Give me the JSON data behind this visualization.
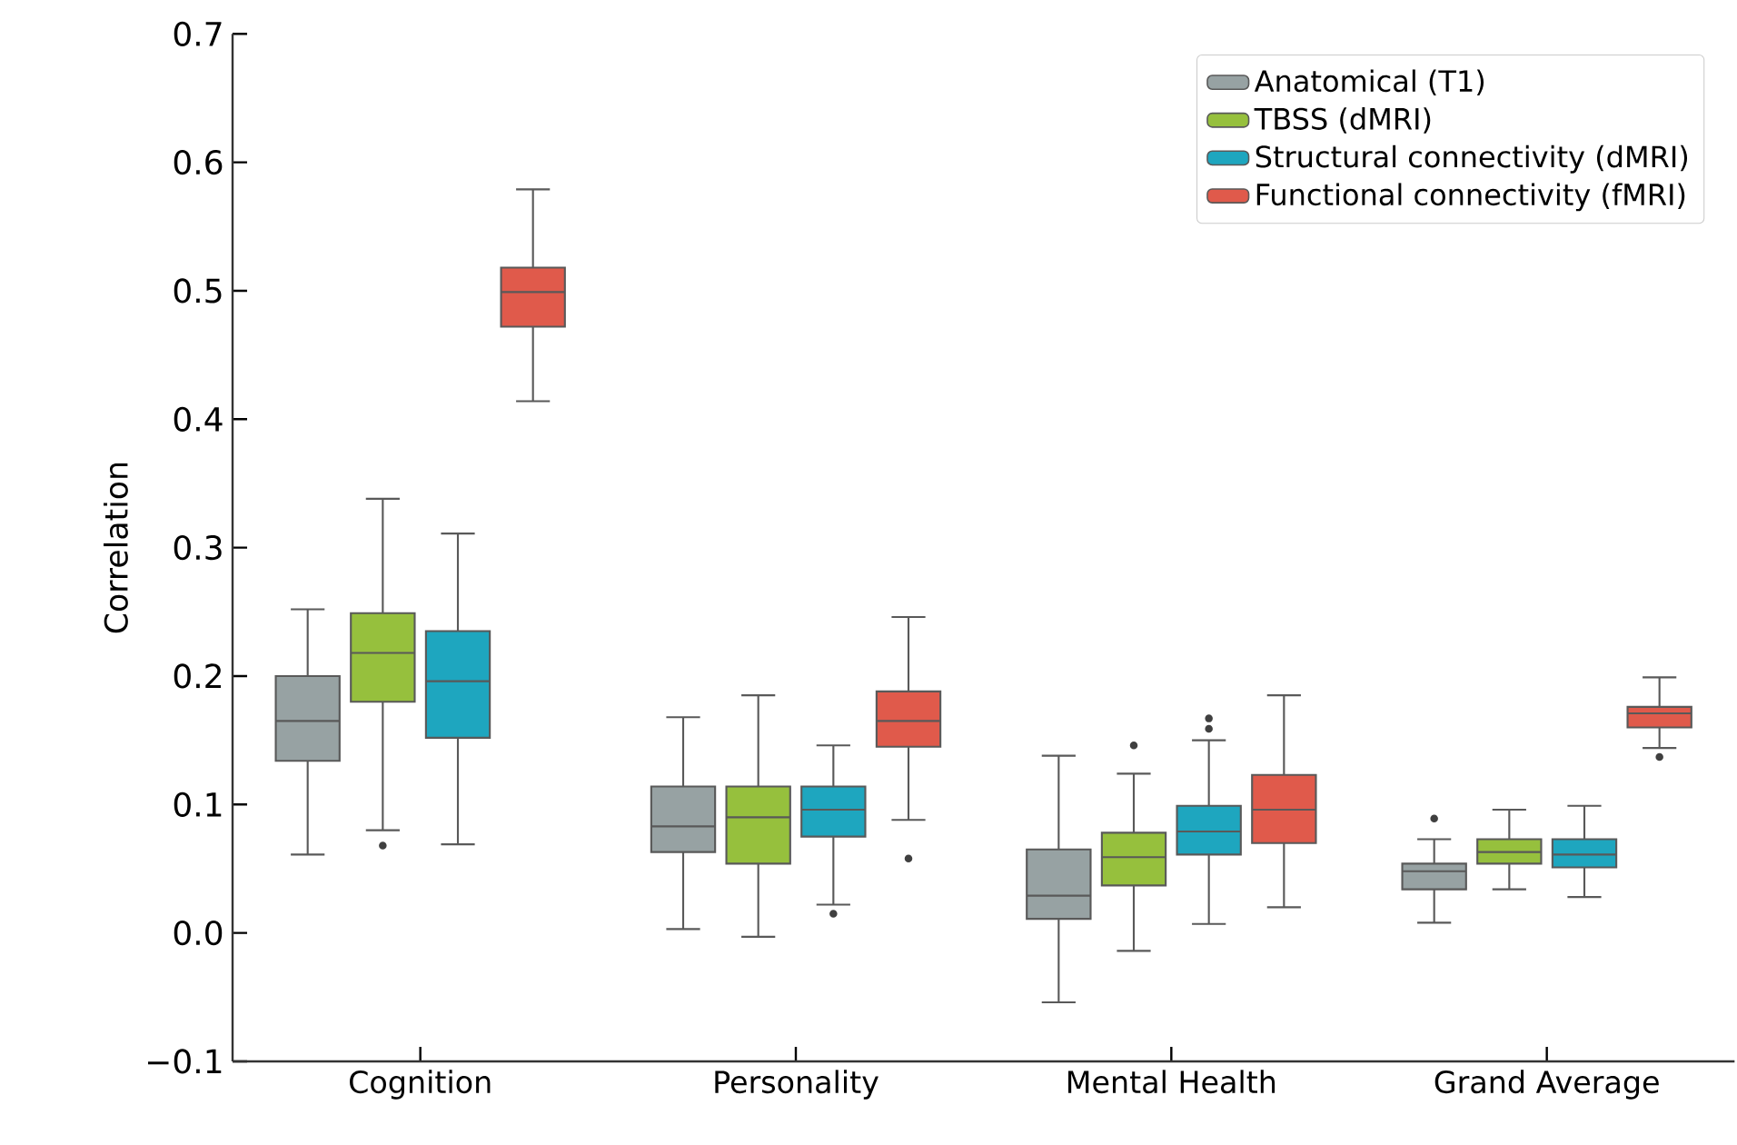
{
  "chart_data": {
    "type": "box",
    "ylabel": "Correlation",
    "categories": [
      "Cognition",
      "Personality",
      "Mental Health",
      "Grand Average"
    ],
    "ylim": [
      -0.1,
      0.7
    ],
    "yticks": [
      {
        "value": -0.1,
        "label": "−0.1"
      },
      {
        "value": 0.0,
        "label": "0.0"
      },
      {
        "value": 0.1,
        "label": "0.1"
      },
      {
        "value": 0.2,
        "label": "0.2"
      },
      {
        "value": 0.3,
        "label": "0.3"
      },
      {
        "value": 0.4,
        "label": "0.4"
      },
      {
        "value": 0.5,
        "label": "0.5"
      },
      {
        "value": 0.6,
        "label": "0.6"
      },
      {
        "value": 0.7,
        "label": "0.7"
      }
    ],
    "legend": "top right",
    "grid": false,
    "series": [
      {
        "name": "Anatomical (T1)",
        "color": "#97a2a3",
        "boxes": [
          {
            "low": 0.061,
            "q1": 0.134,
            "median": 0.165,
            "q3": 0.2,
            "high": 0.252
          },
          {
            "low": 0.003,
            "q1": 0.063,
            "median": 0.083,
            "q3": 0.114,
            "high": 0.168
          },
          {
            "low": -0.054,
            "q1": 0.011,
            "median": 0.029,
            "q3": 0.065,
            "high": 0.138
          },
          {
            "low": 0.008,
            "q1": 0.034,
            "median": 0.048,
            "q3": 0.054,
            "high": 0.073,
            "outliers": [
              0.089
            ]
          }
        ]
      },
      {
        "name": "TBSS (dMRI)",
        "color": "#96c03d",
        "boxes": [
          {
            "low": 0.08,
            "q1": 0.18,
            "median": 0.218,
            "q3": 0.249,
            "high": 0.338,
            "outliers": [
              0.068
            ]
          },
          {
            "low": -0.003,
            "q1": 0.054,
            "median": 0.09,
            "q3": 0.114,
            "high": 0.185
          },
          {
            "low": -0.014,
            "q1": 0.037,
            "median": 0.059,
            "q3": 0.078,
            "high": 0.124,
            "outliers": [
              0.146
            ]
          },
          {
            "low": 0.034,
            "q1": 0.054,
            "median": 0.063,
            "q3": 0.073,
            "high": 0.096
          }
        ]
      },
      {
        "name": "Structural connectivity (dMRI)",
        "color": "#1ea6bf",
        "boxes": [
          {
            "low": 0.069,
            "q1": 0.152,
            "median": 0.196,
            "q3": 0.235,
            "high": 0.311
          },
          {
            "low": 0.022,
            "q1": 0.075,
            "median": 0.096,
            "q3": 0.114,
            "high": 0.146,
            "outliers": [
              0.015
            ]
          },
          {
            "low": 0.007,
            "q1": 0.061,
            "median": 0.079,
            "q3": 0.099,
            "high": 0.15,
            "outliers": [
              0.159,
              0.167
            ]
          },
          {
            "low": 0.028,
            "q1": 0.051,
            "median": 0.061,
            "q3": 0.073,
            "high": 0.099
          }
        ]
      },
      {
        "name": "Functional connectivity (fMRI)",
        "color": "#e05a4b",
        "boxes": [
          {
            "low": 0.414,
            "q1": 0.472,
            "median": 0.499,
            "q3": 0.518,
            "high": 0.579
          },
          {
            "low": 0.088,
            "q1": 0.145,
            "median": 0.165,
            "q3": 0.188,
            "high": 0.246,
            "outliers": [
              0.058
            ]
          },
          {
            "low": 0.02,
            "q1": 0.07,
            "median": 0.096,
            "q3": 0.123,
            "high": 0.185
          },
          {
            "low": 0.144,
            "q1": 0.16,
            "median": 0.171,
            "q3": 0.176,
            "high": 0.199,
            "outliers": [
              0.137
            ]
          }
        ]
      }
    ]
  }
}
